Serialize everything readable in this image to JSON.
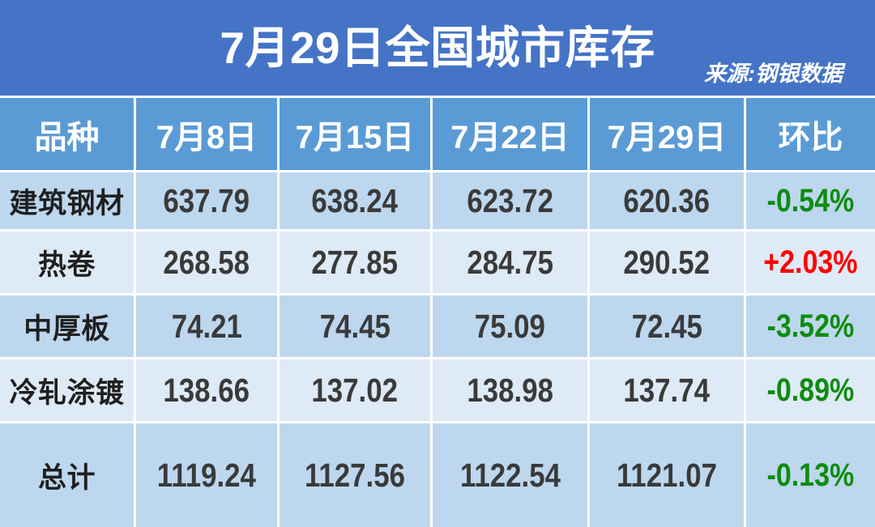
{
  "title": "7月29日全国城市库存",
  "source": "来源:钢银数据",
  "colors": {
    "title_bar": "#4574c6",
    "header_bg": "#5b9bd5",
    "row_odd": "#bdd7ee",
    "row_even": "#deeaf6",
    "up_red": "#ff0000",
    "down_green": "#0e8c0e",
    "label_text": "#1f1f1f",
    "number_text": "#3a3a3a"
  },
  "table": {
    "headers": [
      "品种",
      "7月8日",
      "7月15日",
      "7月22日",
      "7月29日",
      "环比"
    ],
    "rows": [
      {
        "label": "建筑钢材",
        "values": [
          "637.79",
          "638.24",
          "623.72",
          "620.36"
        ],
        "change": "-0.54%",
        "trend": "down"
      },
      {
        "label": "热卷",
        "values": [
          "268.58",
          "277.85",
          "284.75",
          "290.52"
        ],
        "change": "+2.03%",
        "trend": "up"
      },
      {
        "label": "中厚板",
        "values": [
          "74.21",
          "74.45",
          "75.09",
          "72.45"
        ],
        "change": "-3.52%",
        "trend": "down"
      },
      {
        "label": "冷轧涂镀",
        "values": [
          "138.66",
          "137.02",
          "138.98",
          "137.74"
        ],
        "change": "-0.89%",
        "trend": "down"
      },
      {
        "label": "总计",
        "values": [
          "1119.24",
          "1127.56",
          "1122.54",
          "1121.07"
        ],
        "change": "-0.13%",
        "trend": "down"
      }
    ]
  },
  "chart_data": {
    "type": "table",
    "title": "7月29日全国城市库存",
    "source": "来源:钢银数据",
    "columns": [
      "品种",
      "7月8日",
      "7月15日",
      "7月22日",
      "7月29日",
      "环比"
    ],
    "rows": [
      [
        "建筑钢材",
        637.79,
        638.24,
        623.72,
        620.36,
        "-0.54%"
      ],
      [
        "热卷",
        268.58,
        277.85,
        284.75,
        290.52,
        "+2.03%"
      ],
      [
        "中厚板",
        74.21,
        74.45,
        75.09,
        72.45,
        "-3.52%"
      ],
      [
        "冷轧涂镀",
        138.66,
        137.02,
        138.98,
        137.74,
        "-0.89%"
      ],
      [
        "总计",
        1119.24,
        1127.56,
        1122.54,
        1121.07,
        "-0.13%"
      ]
    ]
  }
}
